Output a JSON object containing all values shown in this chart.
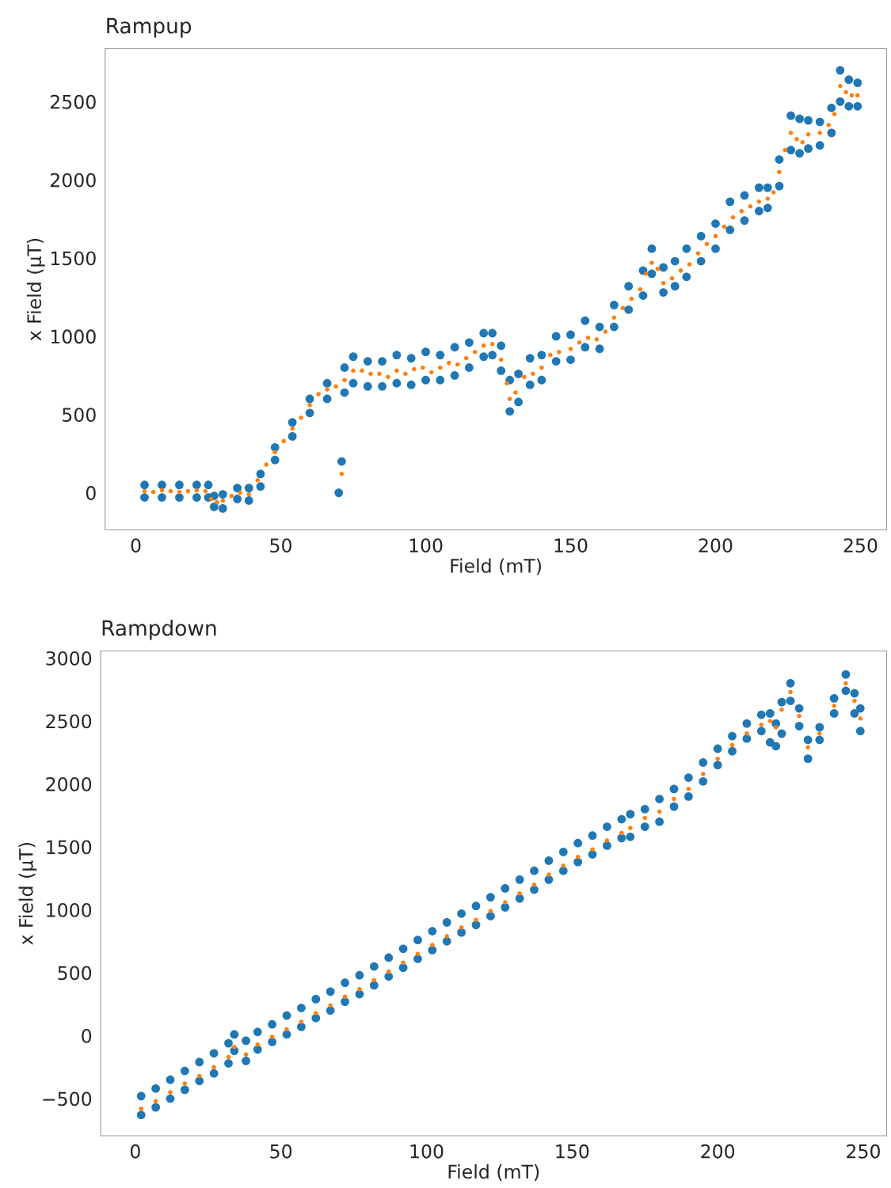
{
  "chart_data": [
    {
      "type": "scatter",
      "title": "Rampup",
      "xlabel": "Field (mT)",
      "ylabel": "x Field (μT)",
      "marker": "circle",
      "grid": false,
      "xlim": [
        -10.6,
        259
      ],
      "ylim": [
        -237,
        2838
      ],
      "xticks": [
        0,
        50,
        100,
        150,
        200,
        250
      ],
      "yticks": [
        0,
        500,
        1000,
        1500,
        2000,
        2500
      ],
      "series": [
        {
          "color": "#1f77b4",
          "x": [
            3,
            3,
            9,
            9,
            15,
            15,
            21,
            21,
            25,
            25,
            27,
            27,
            30,
            30,
            35,
            35,
            39,
            39,
            43,
            43,
            48,
            48,
            54,
            54,
            60,
            60,
            66,
            66,
            70,
            71,
            72,
            72,
            75,
            75,
            80,
            80,
            85,
            85,
            90,
            90,
            95,
            95,
            100,
            100,
            105,
            105,
            110,
            110,
            115,
            115,
            120,
            120,
            123,
            123,
            126,
            126,
            129,
            129,
            132,
            132,
            136,
            136,
            140,
            140,
            145,
            145,
            150,
            150,
            155,
            155,
            160,
            160,
            165,
            165,
            170,
            170,
            175,
            175,
            178,
            178,
            182,
            182,
            186,
            186,
            190,
            190,
            195,
            195,
            200,
            200,
            205,
            205,
            210,
            210,
            215,
            215,
            218,
            218,
            222,
            222,
            226,
            226,
            229,
            229,
            232,
            232,
            236,
            236,
            240,
            240,
            243,
            243,
            246,
            246,
            249,
            249
          ],
          "values": [
            50,
            -30,
            50,
            -30,
            50,
            -30,
            50,
            -30,
            50,
            -30,
            -20,
            -90,
            -10,
            -100,
            30,
            -40,
            30,
            -50,
            120,
            40,
            290,
            210,
            450,
            360,
            600,
            510,
            700,
            600,
            0,
            200,
            800,
            640,
            870,
            700,
            840,
            680,
            840,
            680,
            880,
            700,
            860,
            690,
            900,
            720,
            880,
            720,
            930,
            750,
            960,
            800,
            1020,
            870,
            1020,
            880,
            940,
            780,
            720,
            520,
            760,
            580,
            860,
            690,
            880,
            720,
            1000,
            840,
            1010,
            850,
            1100,
            930,
            1060,
            920,
            1200,
            1060,
            1320,
            1170,
            1420,
            1260,
            1560,
            1400,
            1440,
            1280,
            1480,
            1320,
            1560,
            1380,
            1640,
            1480,
            1720,
            1560,
            1860,
            1680,
            1900,
            1740,
            1950,
            1800,
            1950,
            1820,
            2130,
            1960,
            2410,
            2190,
            2390,
            2170,
            2380,
            2200,
            2370,
            2220,
            2460,
            2300,
            2700,
            2500,
            2640,
            2470,
            2620,
            2470
          ]
        },
        {
          "color": "#ff7f0e",
          "x": [
            3,
            6,
            9,
            12,
            15,
            18,
            21,
            24,
            26,
            28,
            30,
            33,
            36,
            39,
            42,
            45,
            48,
            51,
            54,
            57,
            60,
            63,
            66,
            69,
            71,
            72,
            75,
            78,
            81,
            84,
            87,
            90,
            93,
            96,
            99,
            102,
            105,
            108,
            111,
            114,
            117,
            120,
            123,
            126,
            128,
            129,
            131,
            134,
            137,
            140,
            143,
            146,
            150,
            153,
            156,
            159,
            162,
            165,
            168,
            171,
            174,
            176,
            178,
            180,
            182,
            185,
            188,
            191,
            194,
            197,
            200,
            203,
            206,
            209,
            212,
            215,
            218,
            220,
            222,
            224,
            226,
            228,
            230,
            232,
            236,
            239,
            241,
            243,
            245,
            247,
            249
          ],
          "values": [
            10,
            5,
            15,
            10,
            5,
            10,
            15,
            10,
            -40,
            -60,
            -50,
            -20,
            0,
            -10,
            80,
            180,
            260,
            330,
            410,
            480,
            560,
            630,
            660,
            680,
            120,
            720,
            780,
            780,
            760,
            760,
            740,
            780,
            760,
            790,
            800,
            770,
            800,
            830,
            820,
            860,
            900,
            940,
            950,
            850,
            700,
            600,
            640,
            740,
            760,
            800,
            880,
            900,
            920,
            960,
            990,
            980,
            1030,
            1120,
            1180,
            1240,
            1300,
            1400,
            1470,
            1430,
            1340,
            1370,
            1420,
            1460,
            1530,
            1590,
            1640,
            1700,
            1760,
            1800,
            1830,
            1860,
            1880,
            1920,
            2050,
            2190,
            2300,
            2260,
            2240,
            2290,
            2300,
            2350,
            2420,
            2600,
            2560,
            2540,
            2540
          ]
        }
      ]
    },
    {
      "type": "scatter",
      "title": "Rampdown",
      "xlabel": "Field (mT)",
      "ylabel": "x Field (μT)",
      "marker": "circle",
      "grid": false,
      "xlim": [
        -11.9,
        258
      ],
      "ylim": [
        -795,
        3056
      ],
      "xticks": [
        0,
        50,
        100,
        150,
        200,
        250
      ],
      "yticks": [
        {
          "value": -500,
          "label": "−500"
        },
        0,
        500,
        1000,
        1500,
        2000,
        2500,
        3000
      ],
      "series": [
        {
          "color": "#1f77b4",
          "x": [
            2,
            2,
            7,
            7,
            12,
            12,
            17,
            17,
            22,
            22,
            27,
            27,
            32,
            32,
            34,
            34,
            38,
            38,
            42,
            42,
            47,
            47,
            52,
            52,
            57,
            57,
            62,
            62,
            67,
            67,
            72,
            72,
            77,
            77,
            82,
            82,
            87,
            87,
            92,
            92,
            97,
            97,
            102,
            102,
            107,
            107,
            112,
            112,
            117,
            117,
            122,
            122,
            127,
            127,
            132,
            132,
            137,
            137,
            142,
            142,
            147,
            147,
            152,
            152,
            157,
            157,
            162,
            162,
            167,
            167,
            170,
            170,
            175,
            175,
            180,
            180,
            185,
            185,
            190,
            190,
            195,
            195,
            200,
            200,
            205,
            205,
            210,
            210,
            215,
            215,
            218,
            218,
            220,
            220,
            222,
            222,
            225,
            225,
            228,
            228,
            231,
            231,
            235,
            235,
            240,
            240,
            244,
            244,
            247,
            247,
            249,
            249
          ],
          "values": [
            -480,
            -630,
            -420,
            -570,
            -350,
            -500,
            -280,
            -430,
            -210,
            -360,
            -140,
            -300,
            -60,
            -220,
            10,
            -120,
            -40,
            -200,
            30,
            -110,
            90,
            -50,
            160,
            10,
            220,
            70,
            290,
            140,
            350,
            200,
            420,
            270,
            480,
            330,
            550,
            400,
            620,
            470,
            690,
            540,
            760,
            610,
            830,
            680,
            900,
            750,
            970,
            820,
            1030,
            880,
            1100,
            950,
            1170,
            1020,
            1240,
            1090,
            1310,
            1160,
            1390,
            1240,
            1460,
            1310,
            1530,
            1380,
            1590,
            1440,
            1660,
            1510,
            1720,
            1570,
            1760,
            1580,
            1800,
            1660,
            1880,
            1700,
            1960,
            1820,
            2050,
            1900,
            2170,
            2020,
            2280,
            2150,
            2380,
            2260,
            2480,
            2360,
            2550,
            2420,
            2560,
            2330,
            2480,
            2300,
            2650,
            2400,
            2800,
            2660,
            2600,
            2460,
            2350,
            2200,
            2450,
            2350,
            2680,
            2560,
            2870,
            2740,
            2720,
            2560,
            2600,
            2420
          ]
        },
        {
          "color": "#ff7f0e",
          "x": [
            2,
            7,
            12,
            17,
            22,
            27,
            32,
            34,
            38,
            42,
            47,
            52,
            57,
            62,
            67,
            72,
            77,
            82,
            87,
            92,
            97,
            102,
            107,
            112,
            117,
            122,
            127,
            132,
            137,
            142,
            147,
            152,
            157,
            162,
            167,
            170,
            175,
            180,
            185,
            190,
            195,
            200,
            205,
            210,
            215,
            218,
            220,
            222,
            225,
            228,
            231,
            235,
            240,
            244,
            247,
            249
          ],
          "values": [
            -580,
            -520,
            -450,
            -380,
            -320,
            -250,
            -170,
            -90,
            -150,
            -70,
            -10,
            50,
            110,
            180,
            240,
            310,
            370,
            440,
            510,
            580,
            650,
            720,
            790,
            860,
            920,
            990,
            1060,
            1130,
            1200,
            1280,
            1350,
            1420,
            1480,
            1550,
            1610,
            1650,
            1730,
            1780,
            1880,
            1960,
            2080,
            2200,
            2310,
            2400,
            2470,
            2500,
            2450,
            2590,
            2730,
            2540,
            2290,
            2400,
            2620,
            2800,
            2660,
            2520
          ]
        }
      ]
    }
  ]
}
